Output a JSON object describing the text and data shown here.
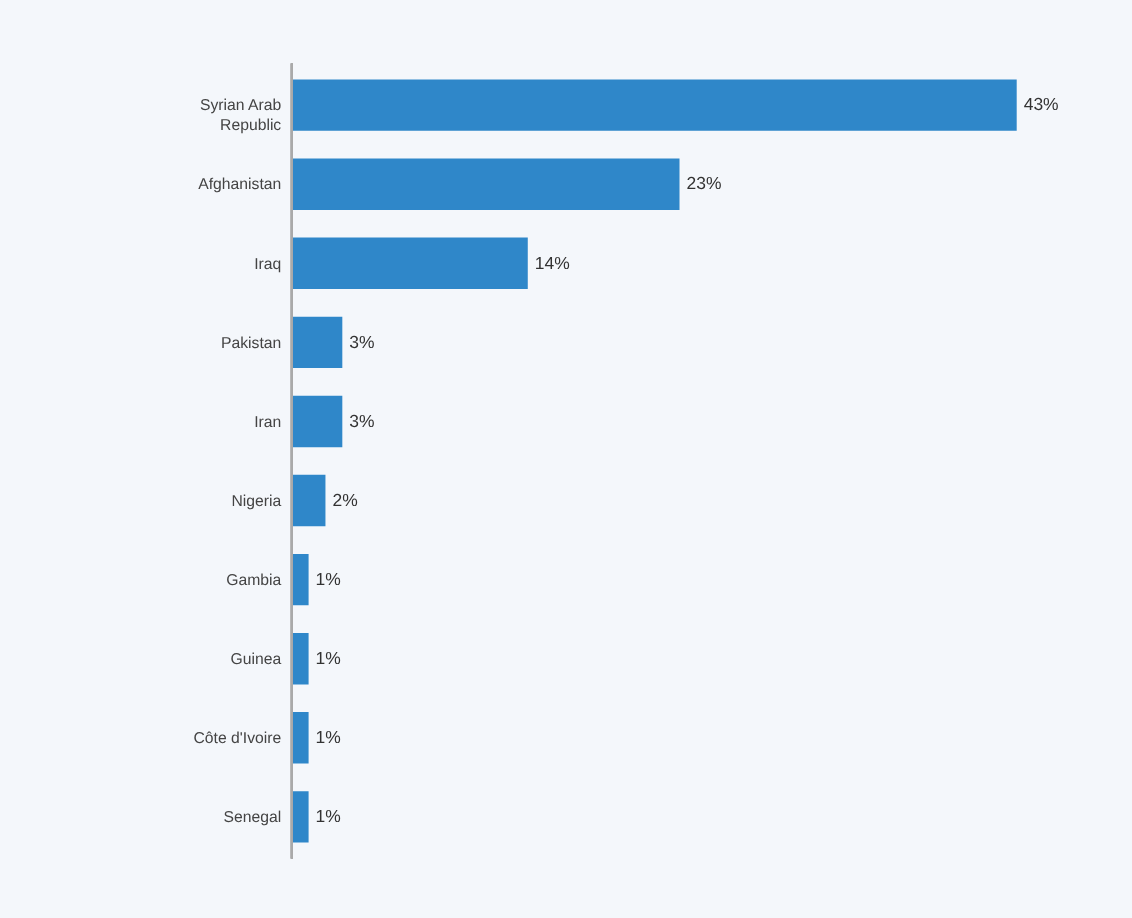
{
  "chart_data": {
    "type": "bar",
    "orientation": "horizontal",
    "categories": [
      "Syrian Arab Republic",
      "Afghanistan",
      "Iraq",
      "Pakistan",
      "Iran",
      "Nigeria",
      "Gambia",
      "Guinea",
      "Côte d'Ivoire",
      "Senegal"
    ],
    "values": [
      43,
      23,
      14,
      3,
      3,
      2,
      1,
      1,
      1,
      1
    ],
    "value_labels": [
      "43%",
      "23%",
      "14%",
      "3%",
      "3%",
      "2%",
      "1%",
      "1%",
      "1%",
      "1%"
    ],
    "color": "#2f87c9",
    "xlim": [
      0,
      43
    ]
  }
}
